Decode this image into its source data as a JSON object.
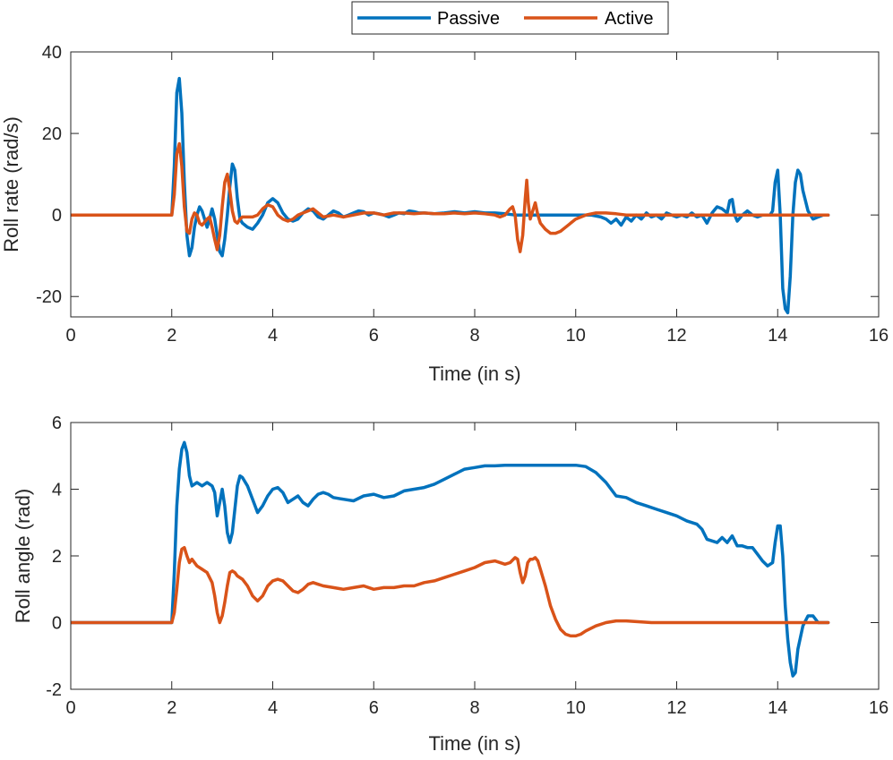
{
  "chart_data": [
    {
      "type": "line",
      "xlabel": "Time (in s)",
      "ylabel": "Roll rate (rad/s)",
      "xlim": [
        0,
        16
      ],
      "ylim": [
        -25,
        40
      ],
      "xticks": [
        0,
        2,
        4,
        6,
        8,
        10,
        12,
        14,
        16
      ],
      "yticks": [
        -20,
        0,
        20,
        40
      ],
      "xtick_labels": [
        "0",
        "2",
        "4",
        "6",
        "8",
        "10",
        "12",
        "14",
        "16"
      ],
      "ytick_labels": [
        "-20",
        "0",
        "20",
        "40"
      ],
      "series": [
        {
          "name": "Passive",
          "color": "#0072BD",
          "x": [
            0,
            2.0,
            2.05,
            2.1,
            2.15,
            2.2,
            2.25,
            2.3,
            2.35,
            2.4,
            2.45,
            2.5,
            2.55,
            2.6,
            2.7,
            2.75,
            2.8,
            2.85,
            2.9,
            2.95,
            3.0,
            3.05,
            3.1,
            3.15,
            3.2,
            3.25,
            3.3,
            3.35,
            3.4,
            3.5,
            3.6,
            3.7,
            3.8,
            3.9,
            4.0,
            4.1,
            4.2,
            4.3,
            4.4,
            4.5,
            4.6,
            4.7,
            4.8,
            4.9,
            5.0,
            5.1,
            5.2,
            5.3,
            5.4,
            5.5,
            5.6,
            5.7,
            5.8,
            5.9,
            6.0,
            6.1,
            6.2,
            6.3,
            6.4,
            6.5,
            6.6,
            6.7,
            6.8,
            6.9,
            7.0,
            7.2,
            7.4,
            7.6,
            7.8,
            8.0,
            8.2,
            8.4,
            8.6,
            8.8,
            9.0,
            9.5,
            10.0,
            10.3,
            10.5,
            10.6,
            10.7,
            10.8,
            10.9,
            11.0,
            11.1,
            11.2,
            11.3,
            11.4,
            11.5,
            11.6,
            11.7,
            11.8,
            11.9,
            12.0,
            12.1,
            12.2,
            12.3,
            12.4,
            12.5,
            12.6,
            12.7,
            12.8,
            12.9,
            13.0,
            13.05,
            13.1,
            13.15,
            13.2,
            13.3,
            13.4,
            13.5,
            13.6,
            13.7,
            13.8,
            13.85,
            13.9,
            13.95,
            14.0,
            14.05,
            14.1,
            14.15,
            14.2,
            14.25,
            14.3,
            14.35,
            14.4,
            14.45,
            14.5,
            14.6,
            14.7,
            14.8,
            14.9,
            15.0
          ],
          "y": [
            0,
            0,
            12,
            30,
            33.5,
            25,
            8,
            -5,
            -10,
            -8,
            -3,
            0,
            2,
            1,
            -3,
            -1,
            1.5,
            -1,
            -5,
            -9,
            -10,
            -6,
            0,
            7,
            12.5,
            11,
            4,
            -1,
            -2,
            -3,
            -3.5,
            -2,
            0,
            3,
            4,
            3,
            0.5,
            -1,
            -1.5,
            -1,
            0.5,
            1.5,
            1,
            -0.5,
            -1,
            0,
            1,
            0.5,
            -0.5,
            0,
            0.5,
            1,
            0.8,
            0,
            0.5,
            0.3,
            0,
            -0.5,
            0,
            0.5,
            0.3,
            1,
            0.8,
            0.5,
            0.5,
            0.3,
            0.5,
            0.8,
            0.5,
            0.8,
            0.5,
            0.5,
            0.3,
            0,
            0,
            0,
            0,
            0,
            -0.5,
            -1,
            -2,
            -1,
            -2.5,
            -0.5,
            -1.5,
            0,
            -1,
            0.5,
            -0.5,
            0,
            -1,
            0.5,
            0,
            -0.5,
            0,
            -0.5,
            0.5,
            -0.5,
            0,
            -2,
            0.5,
            2,
            1.5,
            0.5,
            3.5,
            3.8,
            0,
            -1.5,
            0,
            1,
            0,
            -0.5,
            0,
            0,
            0,
            1,
            8,
            11,
            0,
            -18,
            -23,
            -24,
            -15,
            0,
            8,
            11,
            10,
            6,
            1,
            -1,
            -0.5,
            0,
            0
          ]
        },
        {
          "name": "Active",
          "color": "#D95319",
          "x": [
            0,
            2.0,
            2.05,
            2.1,
            2.15,
            2.2,
            2.25,
            2.3,
            2.35,
            2.4,
            2.45,
            2.5,
            2.55,
            2.6,
            2.7,
            2.75,
            2.8,
            2.85,
            2.9,
            2.95,
            3.0,
            3.05,
            3.1,
            3.15,
            3.2,
            3.25,
            3.3,
            3.35,
            3.4,
            3.5,
            3.6,
            3.7,
            3.8,
            3.9,
            4.0,
            4.1,
            4.2,
            4.3,
            4.4,
            4.5,
            4.6,
            4.7,
            4.8,
            4.9,
            5.0,
            5.2,
            5.4,
            5.6,
            5.8,
            6.0,
            6.2,
            6.4,
            6.6,
            6.8,
            7.0,
            7.2,
            7.4,
            7.6,
            7.8,
            8.0,
            8.2,
            8.4,
            8.5,
            8.6,
            8.7,
            8.75,
            8.8,
            8.85,
            8.9,
            8.95,
            9.0,
            9.03,
            9.06,
            9.1,
            9.15,
            9.2,
            9.25,
            9.3,
            9.4,
            9.5,
            9.6,
            9.7,
            9.8,
            9.9,
            10.0,
            10.2,
            10.4,
            10.6,
            10.8,
            11.0,
            11.2,
            11.4,
            11.6,
            12.0,
            13.0,
            14.0,
            15.0
          ],
          "y": [
            0,
            0,
            5,
            15,
            17.5,
            12,
            2,
            -4,
            -4.5,
            -1,
            0.5,
            0,
            -2,
            -2.5,
            -1,
            -0.5,
            -3,
            -6,
            -8.5,
            -5,
            2,
            8,
            10,
            6,
            1,
            -1.5,
            -2,
            -1,
            -0.5,
            -0.5,
            -0.5,
            0,
            1.5,
            2.5,
            2,
            0,
            -1,
            -1.5,
            -1,
            0,
            0.5,
            1,
            1.5,
            0.5,
            -0.5,
            0,
            -0.5,
            0,
            0.5,
            0.5,
            0,
            0.5,
            0.5,
            0.3,
            0.5,
            0.3,
            0.3,
            0.5,
            0.3,
            0.5,
            0.3,
            0,
            -0.5,
            0,
            1.5,
            2,
            0,
            -6,
            -9,
            -5,
            4,
            8.5,
            3,
            -1,
            1,
            3,
            0,
            -2,
            -3.5,
            -4.5,
            -4.5,
            -4,
            -3,
            -2,
            -1,
            0,
            0.5,
            0.5,
            0.3,
            0,
            0,
            0,
            0,
            0,
            0,
            0,
            0
          ]
        }
      ]
    },
    {
      "type": "line",
      "xlabel": "Time (in s)",
      "ylabel": "Roll angle (rad)",
      "xlim": [
        0,
        16
      ],
      "ylim": [
        -2,
        6
      ],
      "xticks": [
        0,
        2,
        4,
        6,
        8,
        10,
        12,
        14,
        16
      ],
      "yticks": [
        -2,
        0,
        2,
        4,
        6
      ],
      "xtick_labels": [
        "0",
        "2",
        "4",
        "6",
        "8",
        "10",
        "12",
        "14",
        "16"
      ],
      "ytick_labels": [
        "-2",
        "0",
        "2",
        "4",
        "6"
      ],
      "series": [
        {
          "name": "Passive",
          "color": "#0072BD",
          "x": [
            0,
            2.0,
            2.05,
            2.1,
            2.15,
            2.2,
            2.25,
            2.3,
            2.35,
            2.4,
            2.5,
            2.6,
            2.7,
            2.8,
            2.85,
            2.9,
            2.95,
            3.0,
            3.05,
            3.1,
            3.15,
            3.2,
            3.25,
            3.3,
            3.35,
            3.4,
            3.5,
            3.6,
            3.7,
            3.8,
            3.9,
            4.0,
            4.1,
            4.2,
            4.3,
            4.4,
            4.5,
            4.6,
            4.7,
            4.8,
            4.9,
            5.0,
            5.1,
            5.2,
            5.4,
            5.6,
            5.8,
            6.0,
            6.2,
            6.4,
            6.6,
            6.8,
            7.0,
            7.2,
            7.4,
            7.6,
            7.8,
            8.0,
            8.2,
            8.4,
            8.6,
            8.8,
            9.0,
            9.5,
            10.0,
            10.2,
            10.4,
            10.6,
            10.8,
            11.0,
            11.2,
            11.4,
            11.6,
            11.8,
            12.0,
            12.2,
            12.4,
            12.5,
            12.6,
            12.8,
            12.9,
            13.0,
            13.1,
            13.2,
            13.3,
            13.4,
            13.5,
            13.6,
            13.7,
            13.8,
            13.9,
            13.95,
            14.0,
            14.05,
            14.1,
            14.15,
            14.2,
            14.25,
            14.3,
            14.35,
            14.4,
            14.5,
            14.6,
            14.7,
            14.8,
            15.0
          ],
          "y": [
            0,
            0,
            1.5,
            3.5,
            4.6,
            5.2,
            5.4,
            5.1,
            4.4,
            4.1,
            4.2,
            4.1,
            4.2,
            4.1,
            3.9,
            3.2,
            3.6,
            4.0,
            3.5,
            2.7,
            2.4,
            2.7,
            3.4,
            4.1,
            4.4,
            4.35,
            4.1,
            3.7,
            3.3,
            3.5,
            3.8,
            4.0,
            4.05,
            3.9,
            3.6,
            3.7,
            3.8,
            3.6,
            3.5,
            3.7,
            3.85,
            3.9,
            3.85,
            3.75,
            3.7,
            3.65,
            3.8,
            3.85,
            3.75,
            3.8,
            3.95,
            4.0,
            4.05,
            4.15,
            4.3,
            4.45,
            4.6,
            4.65,
            4.7,
            4.7,
            4.72,
            4.72,
            4.72,
            4.72,
            4.72,
            4.68,
            4.5,
            4.2,
            3.8,
            3.75,
            3.6,
            3.5,
            3.4,
            3.3,
            3.2,
            3.05,
            2.95,
            2.8,
            2.5,
            2.4,
            2.55,
            2.4,
            2.6,
            2.3,
            2.3,
            2.25,
            2.25,
            2.05,
            1.85,
            1.7,
            1.8,
            2.4,
            2.9,
            2.9,
            2.0,
            0.5,
            -0.5,
            -1.2,
            -1.6,
            -1.5,
            -0.8,
            -0.1,
            0.2,
            0.2,
            0.0,
            0.0
          ]
        },
        {
          "name": "Active",
          "color": "#D95319",
          "x": [
            0,
            2.0,
            2.05,
            2.1,
            2.15,
            2.2,
            2.25,
            2.3,
            2.35,
            2.4,
            2.5,
            2.6,
            2.7,
            2.8,
            2.85,
            2.9,
            2.95,
            3.0,
            3.05,
            3.1,
            3.15,
            3.2,
            3.25,
            3.3,
            3.4,
            3.5,
            3.6,
            3.7,
            3.8,
            3.9,
            4.0,
            4.1,
            4.2,
            4.3,
            4.4,
            4.5,
            4.6,
            4.7,
            4.8,
            4.9,
            5.0,
            5.2,
            5.4,
            5.6,
            5.8,
            6.0,
            6.2,
            6.4,
            6.6,
            6.8,
            7.0,
            7.2,
            7.4,
            7.6,
            7.8,
            8.0,
            8.2,
            8.4,
            8.6,
            8.7,
            8.8,
            8.85,
            8.9,
            8.95,
            9.0,
            9.05,
            9.1,
            9.15,
            9.2,
            9.25,
            9.3,
            9.4,
            9.5,
            9.6,
            9.7,
            9.8,
            9.9,
            10.0,
            10.1,
            10.2,
            10.4,
            10.6,
            10.8,
            11.0,
            11.2,
            11.5,
            12.0,
            13.0,
            14.0,
            15.0
          ],
          "y": [
            0,
            0,
            0.3,
            1.0,
            1.8,
            2.2,
            2.25,
            2.0,
            1.8,
            1.9,
            1.7,
            1.6,
            1.5,
            1.2,
            0.8,
            0.3,
            0.0,
            0.2,
            0.6,
            1.1,
            1.5,
            1.55,
            1.5,
            1.4,
            1.3,
            1.1,
            0.8,
            0.65,
            0.8,
            1.1,
            1.25,
            1.3,
            1.25,
            1.1,
            0.95,
            0.9,
            1.0,
            1.15,
            1.2,
            1.15,
            1.1,
            1.05,
            1.0,
            1.05,
            1.1,
            1.0,
            1.05,
            1.05,
            1.1,
            1.1,
            1.2,
            1.25,
            1.35,
            1.45,
            1.55,
            1.65,
            1.8,
            1.85,
            1.75,
            1.8,
            1.95,
            1.9,
            1.5,
            1.2,
            1.4,
            1.8,
            1.9,
            1.9,
            1.95,
            1.85,
            1.6,
            1.1,
            0.5,
            0.1,
            -0.2,
            -0.35,
            -0.4,
            -0.4,
            -0.35,
            -0.25,
            -0.1,
            0.0,
            0.05,
            0.05,
            0.03,
            0.0,
            0.0,
            0.0,
            0.0,
            0.0
          ]
        }
      ]
    }
  ],
  "legend": {
    "location": "top-center",
    "entries": [
      {
        "label": "Passive",
        "color": "#0072BD"
      },
      {
        "label": "Active",
        "color": "#D95319"
      }
    ]
  }
}
